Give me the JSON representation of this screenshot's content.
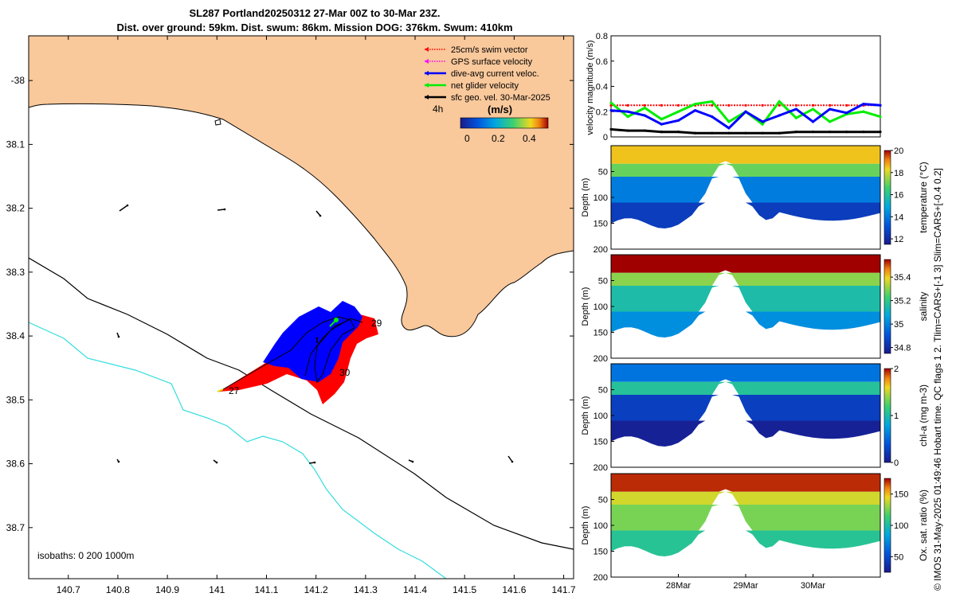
{
  "header": {
    "title_line1": "SL287 Portland20250312 27-Mar 00Z to 30-Mar 23Z.",
    "title_line2": "Dist. over ground: 59km. Dist. swum: 86km. Mission DOG: 376km. Swum: 410km"
  },
  "footer_note": "© IMOS 31-May-2025 01:49:46 Hobart time. QC flags 1 2. Tlim=CARS+[-1 3] Slim=CARS+[-0.4 0.2]",
  "colors": {
    "land": "#f9c89b",
    "coast": "#000000",
    "isobath_200": "#000000",
    "isobath_1000": "#33dddd",
    "swim": "#ff0000",
    "gps": "#ff00ff",
    "dive_avg": "#0000ff",
    "net": "#00ee00",
    "sfc_geo": "#000000",
    "track_red": "#ff0000",
    "track_blue": "#0000ff"
  },
  "map": {
    "legend": [
      {
        "label": "25cm/s swim vector",
        "color": "#ff0000",
        "style": "dotted"
      },
      {
        "label": "GPS surface velocity",
        "color": "#ff00ff",
        "style": "dotted"
      },
      {
        "label": "dive-avg current veloc.",
        "color": "#0000ff",
        "style": "solid"
      },
      {
        "label": "net glider velocity",
        "color": "#00ee00",
        "style": "solid"
      },
      {
        "label": "sfc geo. vel. 30-Mar-2025",
        "color": "#000000",
        "style": "solid"
      }
    ],
    "time_step_label": "4h",
    "colorbar_unit": "(m/s)",
    "colorbar_ticks": [
      "0",
      "0.2",
      "0.4"
    ],
    "isobaths_label": "isobaths: 0   200  1000m",
    "day_labels": [
      "27",
      "29",
      "30"
    ],
    "x_ticks": [
      140.7,
      140.8,
      140.9,
      141,
      141.1,
      141.2,
      141.3,
      141.4,
      141.5,
      141.6,
      141.7
    ],
    "x_tick_labels": [
      "140.7",
      "140.8",
      "140.9",
      "141",
      "141.1",
      "141.2",
      "141.3",
      "141.4",
      "141.5",
      "141.6",
      "141.7"
    ],
    "y_ticks": [
      -38,
      -38.1,
      -38.2,
      -38.3,
      -38.4,
      -38.5,
      -38.6,
      -38.7
    ],
    "y_tick_labels": [
      "-38",
      "38.1",
      "38.2",
      "38.3",
      "38.4",
      "38.5",
      "38.6",
      "38.7"
    ],
    "xlim": [
      140.62,
      141.72
    ],
    "ylim": [
      -38.78,
      -37.93
    ]
  },
  "chart_data": [
    {
      "type": "line",
      "title": "",
      "xlabel": "",
      "ylabel": "velocity magnitude (m/s)",
      "ylim": [
        0,
        0.8
      ],
      "y_ticks": [
        "0",
        "0.2",
        "0.4",
        "0.6",
        "0.8"
      ],
      "x": [
        27.0,
        27.25,
        27.5,
        27.75,
        28.0,
        28.25,
        28.5,
        28.75,
        29.0,
        29.25,
        29.5,
        29.75,
        30.0,
        30.25,
        30.5,
        30.75,
        31.0
      ],
      "series": [
        {
          "name": "25cm/s swim vector",
          "color": "#ff0000",
          "style": "dotted",
          "values": [
            0.25,
            0.25,
            0.25,
            0.25,
            0.25,
            0.25,
            0.25,
            0.25,
            0.25,
            0.25,
            0.25,
            0.25,
            0.25,
            0.25,
            0.25,
            0.25,
            0.25
          ]
        },
        {
          "name": "net glider velocity",
          "color": "#00ee00",
          "style": "solid",
          "values": [
            0.27,
            0.16,
            0.23,
            0.14,
            0.2,
            0.26,
            0.28,
            0.12,
            0.2,
            0.1,
            0.28,
            0.15,
            0.22,
            0.12,
            0.18,
            0.2,
            0.16
          ]
        },
        {
          "name": "dive-avg current veloc.",
          "color": "#0000ff",
          "style": "solid",
          "values": [
            0.21,
            0.2,
            0.17,
            0.1,
            0.13,
            0.21,
            0.16,
            0.07,
            0.2,
            0.12,
            0.17,
            0.22,
            0.12,
            0.22,
            0.19,
            0.26,
            0.25
          ]
        },
        {
          "name": "sfc geo. vel.",
          "color": "#000000",
          "style": "solid",
          "values": [
            0.06,
            0.05,
            0.05,
            0.04,
            0.04,
            0.03,
            0.03,
            0.03,
            0.03,
            0.03,
            0.03,
            0.04,
            0.04,
            0.04,
            0.04,
            0.04,
            0.04
          ]
        }
      ]
    },
    {
      "type": "heatmap",
      "ylabel": "Depth (m)",
      "colorbar_label": "temperature (°C)",
      "ylim": [
        200,
        0
      ],
      "y_ticks": [
        "50",
        "100",
        "150",
        "200"
      ],
      "cbar_ticks": [
        "12",
        "14",
        "16",
        "18",
        "20"
      ],
      "cbar_range": [
        11.5,
        20
      ],
      "colormap": "parula",
      "surface_value": 18.5,
      "layer_value": 17.0,
      "deep_value": 14.0,
      "bottom_value": 12.5
    },
    {
      "type": "heatmap",
      "ylabel": "Depth (m)",
      "colorbar_label": "salinity",
      "ylim": [
        200,
        0
      ],
      "y_ticks": [
        "50",
        "100",
        "150",
        "200"
      ],
      "cbar_ticks": [
        "34.8",
        "35",
        "35.2",
        "35.4"
      ],
      "cbar_range": [
        34.75,
        35.55
      ],
      "colormap": "parula",
      "surface_value": 35.55,
      "layer_value": 35.3,
      "deep_value": 35.15,
      "bottom_value": 35.02
    },
    {
      "type": "heatmap",
      "ylabel": "Depth (m)",
      "colorbar_label": "chl-a (mg m-3)",
      "ylim": [
        200,
        0
      ],
      "y_ticks": [
        "50",
        "100",
        "150",
        "200"
      ],
      "cbar_ticks": [
        "0",
        "1",
        "2"
      ],
      "cbar_range": [
        0,
        2
      ],
      "colormap": "parula",
      "surface_value": 0.55,
      "layer_value": 1.05,
      "deep_value": 0.25,
      "bottom_value": 0.05
    },
    {
      "type": "heatmap",
      "ylabel": "Depth (m)",
      "colorbar_label": "Ox. sat. ratio (%)",
      "ylim": [
        200,
        0
      ],
      "y_ticks": [
        "50",
        "100",
        "150",
        "200"
      ],
      "cbar_ticks": [
        "50",
        "100",
        "150"
      ],
      "cbar_range": [
        25,
        175
      ],
      "colormap": "parula",
      "surface_value": 170,
      "layer_value": 140,
      "deep_value": 125,
      "bottom_value": 105,
      "x_ticks": [
        "28Mar",
        "29Mar",
        "30Mar"
      ],
      "x_tick_days": [
        28,
        29,
        30
      ]
    }
  ]
}
